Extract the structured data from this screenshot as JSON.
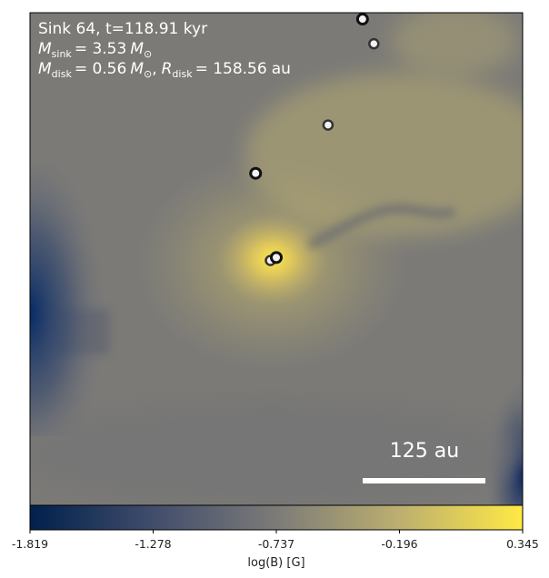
{
  "chart_data": {
    "type": "heatmap",
    "title_line1": "Sink 64, t=118.91 kyr",
    "mass_sink": {
      "symbol": "M",
      "subscript": "sink",
      "value": "= 3.53",
      "unit": "M",
      "unit_subscript": "⊙"
    },
    "mass_disk": {
      "symbol": "M",
      "subscript": "disk",
      "value": "= 0.56",
      "unit": "M",
      "unit_subscript": "⊙",
      "separator": ","
    },
    "radius_disk": {
      "symbol": "R",
      "subscript": "disk",
      "value": "= 158.56",
      "unit": "au"
    },
    "scale_bar_label": "125 au",
    "colormap": "cividis",
    "colorbar": {
      "label": "log(B) [G]",
      "min": -1.819,
      "max": 0.345,
      "ticks": [
        "-1.819",
        "-1.278",
        "-0.737",
        "-0.196",
        "0.345"
      ],
      "colors": [
        "#00204c",
        "#414d6b",
        "#7c7b78",
        "#bcaf6f",
        "#ffe945"
      ]
    },
    "sinks": [
      {
        "x": 0.675,
        "y": 0.013,
        "style": "dark"
      },
      {
        "x": 0.698,
        "y": 0.063,
        "style": "gray"
      },
      {
        "x": 0.605,
        "y": 0.228,
        "style": "gray"
      },
      {
        "x": 0.458,
        "y": 0.326,
        "style": "dark"
      },
      {
        "x": 0.488,
        "y": 0.503,
        "style": "gray"
      },
      {
        "x": 0.5,
        "y": 0.497,
        "style": "dark"
      }
    ]
  }
}
